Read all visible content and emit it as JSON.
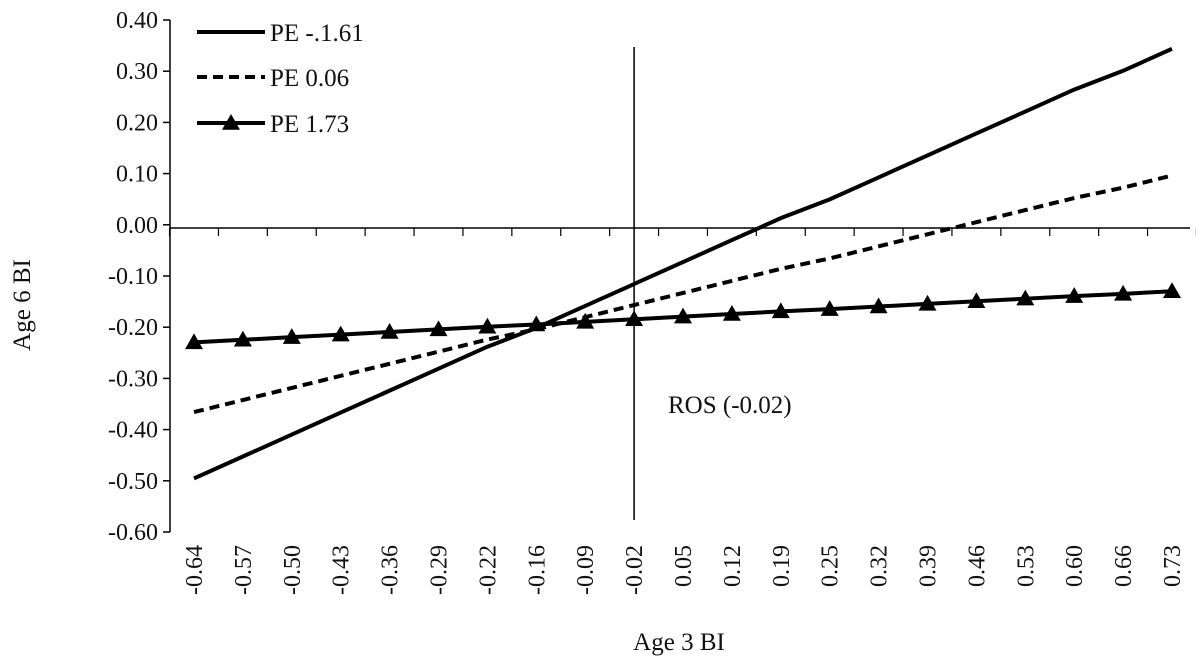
{
  "chart_data": {
    "type": "line",
    "xlabel": "Age 3 BI",
    "ylabel": "Age 6 BI",
    "ylim": [
      -0.6,
      0.4
    ],
    "y_ticks": [
      "0.40",
      "0.30",
      "0.20",
      "0.10",
      "0.00",
      "-0.10",
      "-0.20",
      "-0.30",
      "-0.40",
      "-0.50",
      "-0.60"
    ],
    "categories": [
      "-0.64",
      "-0.57",
      "-0.50",
      "-0.43",
      "-0.36",
      "-0.29",
      "-0.22",
      "-0.16",
      "-0.09",
      "-0.02",
      "0.05",
      "0.12",
      "0.19",
      "0.25",
      "0.32",
      "0.39",
      "0.46",
      "0.53",
      "0.60",
      "0.66",
      "0.73"
    ],
    "x_values": [
      -0.64,
      -0.57,
      -0.5,
      -0.43,
      -0.36,
      -0.29,
      -0.22,
      -0.16,
      -0.09,
      -0.02,
      0.05,
      0.12,
      0.19,
      0.25,
      0.32,
      0.39,
      0.46,
      0.53,
      0.6,
      0.66,
      0.73
    ],
    "series": [
      {
        "name": "PE -.1.61",
        "style": "solid",
        "marker": "none",
        "intercept": -0.1034,
        "slope": 0.6125
      },
      {
        "name": "PE 0.06",
        "style": "dashed",
        "marker": "none",
        "intercept": -0.15,
        "slope": 0.3372
      },
      {
        "name": "PE 1.73",
        "style": "solid",
        "marker": "triangle",
        "intercept": -0.183,
        "slope": 0.073
      }
    ],
    "annotation": {
      "text": "ROS (-0.02)",
      "x": -0.02
    },
    "grid": false,
    "legend_position": "top-left",
    "colors": {
      "line": "#000000",
      "axis": "#000000",
      "background": "#ffffff"
    }
  }
}
